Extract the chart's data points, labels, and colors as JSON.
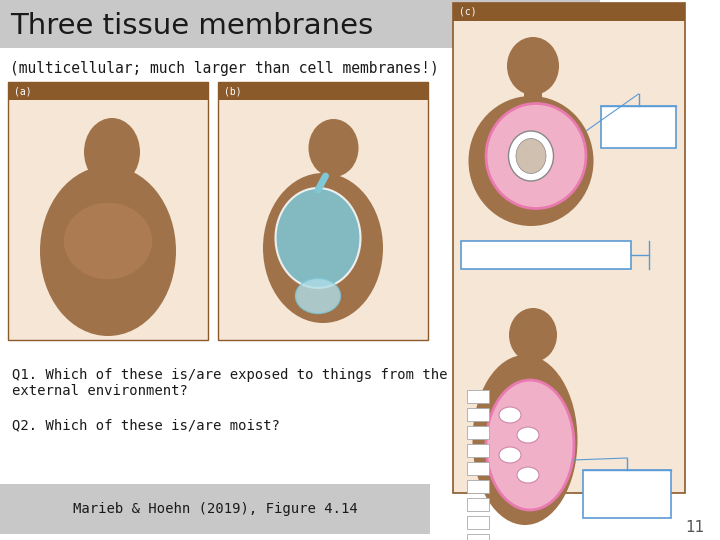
{
  "title": "Three tissue membranes",
  "subtitle": "(multicellular; much larger than cell membranes!)",
  "q1_line1": "Q1. Which of these is/are exposed to things from the",
  "q1_line2": "external environment?",
  "q2": "Q2. Which of these is/are moist?",
  "citation": "Marieb & Hoehn (2019), Figure 4.14",
  "page_number": "11",
  "title_bg": "#c8c8c8",
  "title_color": "#1a1a1a",
  "subtitle_color": "#1a1a1a",
  "body_bg": "#ffffff",
  "citation_bg": "#c8c8c8",
  "panel_bg": "#f5e6d5",
  "panel_border": "#8b5a2b",
  "panel_label_bg": "#8b5a2b",
  "panel_label_color": "#ffffff",
  "box_border": "#5b9bd5",
  "box_fill": "#ffffff",
  "q_color": "#1a1a1a",
  "skin_color": "#a0724a",
  "lung_blue": "#7ec8d8",
  "lung_pink": "#e87ab0",
  "gut_pink": "#e87ab0"
}
